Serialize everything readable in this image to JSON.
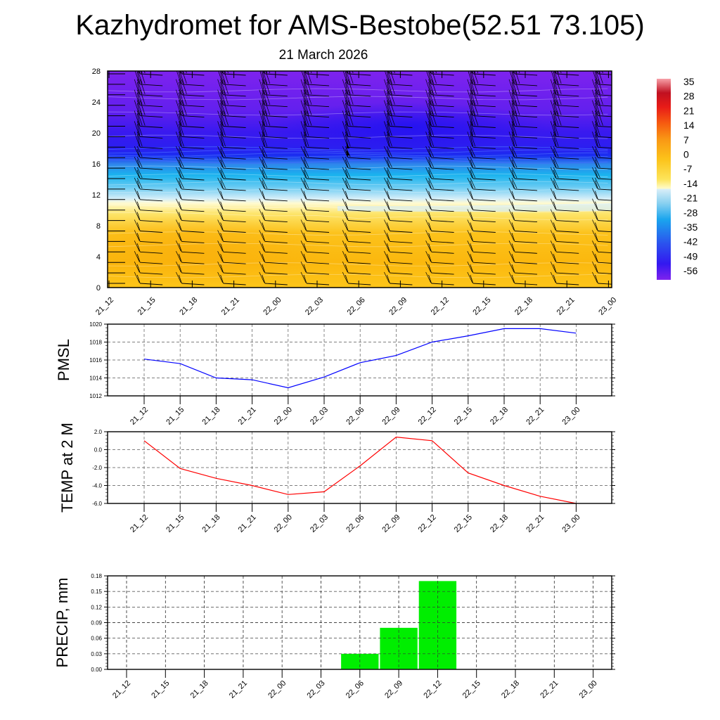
{
  "title": "Kazhydromet for AMS-Bestobe(52.51 73.105)",
  "subtitle": "21 March 2026",
  "time_labels": [
    "21_12",
    "21_15",
    "21_18",
    "21_21",
    "22_00",
    "22_03",
    "22_06",
    "22_09",
    "22_12",
    "22_15",
    "22_18",
    "22_21",
    "23_00"
  ],
  "colors": {
    "pmsl_line": "#0000ff",
    "temp_line": "#ff0000",
    "precip_bar": "#00ee00",
    "barb": "#000000"
  },
  "chart_data": [
    {
      "type": "heatmap",
      "name": "vertical cross-section temperature with wind barbs",
      "x": [
        "21_12",
        "21_15",
        "21_18",
        "21_21",
        "22_00",
        "22_03",
        "22_06",
        "22_09",
        "22_12",
        "22_15",
        "22_18",
        "22_21",
        "23_00"
      ],
      "ylim": [
        0,
        28
      ],
      "yticks": [
        "0",
        "4",
        "8",
        "12",
        "16",
        "20",
        "24",
        "28"
      ],
      "colorbar": {
        "labels": [
          "35",
          "28",
          "21",
          "14",
          "7",
          "0",
          "-7",
          "-14",
          "-21",
          "-28",
          "-35",
          "-42",
          "-49",
          "-56"
        ],
        "range": [
          -60,
          38
        ]
      },
      "bands": [
        {
          "level_bottom": 0,
          "level_top": 11,
          "description_value": "0 to -7"
        },
        {
          "level_bottom": 11,
          "level_top": 17,
          "description_value": "-14 to -42"
        },
        {
          "level_bottom": 17,
          "level_top": 28,
          "description_value": "-49 to -56"
        }
      ]
    },
    {
      "type": "line",
      "ylabel": "PMSL",
      "categories": [
        "21_12",
        "21_15",
        "21_18",
        "21_21",
        "22_00",
        "22_03",
        "22_06",
        "22_09",
        "22_12",
        "22_15",
        "22_18",
        "22_21",
        "23_00"
      ],
      "values": [
        1016.1,
        1015.6,
        1014.0,
        1013.8,
        1012.9,
        1014.1,
        1015.7,
        1016.5,
        1018.0,
        1018.7,
        1019.5,
        1019.5,
        1019.0
      ],
      "ylim": [
        1012,
        1020
      ],
      "yticks": [
        "1012",
        "1014",
        "1016",
        "1018",
        "1020"
      ],
      "grid": true
    },
    {
      "type": "line",
      "ylabel": "TEMP at 2 M",
      "categories": [
        "21_12",
        "21_15",
        "21_18",
        "21_21",
        "22_00",
        "22_03",
        "22_06",
        "22_09",
        "22_12",
        "22_15",
        "22_18",
        "22_21",
        "23_00"
      ],
      "values": [
        1.0,
        -2.1,
        -3.2,
        -4.0,
        -5.0,
        -4.7,
        -1.8,
        1.4,
        1.0,
        -2.6,
        -4.0,
        -5.2,
        -6.0
      ],
      "ylim": [
        -6,
        2
      ],
      "yticks": [
        "-6.0",
        "-4.0",
        "-2.0",
        "0.0",
        "2.0"
      ],
      "grid": true
    },
    {
      "type": "bar",
      "ylabel": "PRECIP, mm",
      "categories": [
        "21_12",
        "21_15",
        "21_18",
        "21_21",
        "22_00",
        "22_03",
        "22_06",
        "22_09",
        "22_12",
        "22_15",
        "22_18",
        "22_21",
        "23_00"
      ],
      "values": [
        0,
        0,
        0,
        0,
        0,
        0,
        0.03,
        0.08,
        0.17,
        0,
        0,
        0,
        0
      ],
      "ylim": [
        0,
        0.18
      ],
      "yticks": [
        "0.00",
        "0.03",
        "0.06",
        "0.09",
        "0.12",
        "0.15",
        "0.18"
      ],
      "grid": true
    }
  ]
}
